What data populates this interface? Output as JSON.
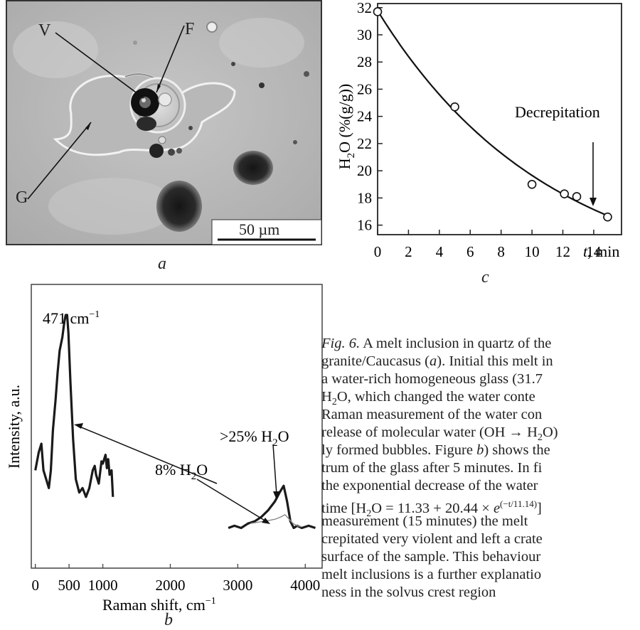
{
  "figure_a": {
    "panel_letter": "a",
    "labels": {
      "V": "V",
      "F": "F",
      "G": "G"
    },
    "scale_bar": "50 µm"
  },
  "chart_data": [
    {
      "type": "scatter",
      "panel_letter": "c",
      "ylabel": "H2O (%(g/g))",
      "ylabel_parts": {
        "main": "H",
        "sub": "2",
        "tail": "O (%(g/g))"
      },
      "xlabel": "t, min",
      "xlabel_parts": {
        "var": "t",
        "rest": ", min"
      },
      "xlim": [
        0,
        15.8
      ],
      "ylim": [
        15.3,
        32.3
      ],
      "xticks": [
        0,
        2,
        4,
        6,
        8,
        10,
        12,
        14
      ],
      "yticks": [
        16,
        18,
        20,
        22,
        24,
        26,
        28,
        30,
        32
      ],
      "points": {
        "x": [
          0,
          5,
          10,
          12.1,
          12.9,
          14.9
        ],
        "y": [
          31.7,
          24.7,
          19.0,
          18.3,
          18.1,
          16.6
        ]
      },
      "fit": {
        "a": 11.33,
        "b": 20.44,
        "tau": 11.14,
        "x_range": [
          0,
          14.9
        ]
      },
      "annotation": {
        "text": "Decrepitation",
        "x": 14.9,
        "y": 16.6
      },
      "grid": false,
      "marker": "open-circle",
      "line_color": "#111111"
    },
    {
      "type": "line",
      "panel_letter": "b",
      "xlabel": "Raman shift, cm−1",
      "xlabel_parts": {
        "main": "Raman shift, cm",
        "sup": "−1"
      },
      "ylabel": "Intensity, a.u.",
      "xlim": [
        -60,
        4250
      ],
      "ylim": [
        0,
        1
      ],
      "xticks": [
        0,
        500,
        1000,
        2000,
        3000,
        4000
      ],
      "xtick_labels": [
        "0",
        "500",
        "1000",
        "2000",
        "3000",
        "4000"
      ],
      "series": [
        {
          "style": "thick",
          "x": [
            0,
            50,
            90,
            120,
            160,
            200,
            230,
            260,
            300,
            330,
            360,
            400,
            430,
            450,
            471,
            490,
            520,
            560,
            600,
            650,
            700,
            750,
            800,
            850,
            880,
            900,
            940,
            980,
            1000,
            1040,
            1060,
            1080,
            1100,
            1130,
            1150
          ],
          "y": [
            0.3,
            0.38,
            0.42,
            0.3,
            0.26,
            0.22,
            0.3,
            0.48,
            0.62,
            0.74,
            0.84,
            0.9,
            0.97,
            1.0,
            1.0,
            0.92,
            0.7,
            0.44,
            0.26,
            0.2,
            0.22,
            0.18,
            0.22,
            0.3,
            0.32,
            0.28,
            0.24,
            0.34,
            0.33,
            0.37,
            0.31,
            0.35,
            0.28,
            0.3,
            0.18
          ]
        },
        {
          "style": "thick",
          "x": [
            2860,
            2950,
            3050,
            3150,
            3250,
            3350,
            3450,
            3550,
            3620,
            3680,
            3730,
            3780,
            3830,
            3880,
            3950,
            4050,
            4150
          ],
          "y": [
            0.04,
            0.05,
            0.04,
            0.06,
            0.07,
            0.09,
            0.12,
            0.16,
            0.2,
            0.23,
            0.16,
            0.07,
            0.04,
            0.05,
            0.04,
            0.05,
            0.04
          ]
        },
        {
          "style": "thin",
          "x": [
            3180,
            3280,
            3380,
            3480,
            3560,
            3640,
            3700,
            3760,
            3820,
            3880,
            3950
          ],
          "y": [
            0.06,
            0.065,
            0.07,
            0.075,
            0.08,
            0.09,
            0.1,
            0.08,
            0.06,
            0.05,
            0.045
          ]
        }
      ],
      "annotations": [
        {
          "text": "471 cm−1",
          "main": "471 cm",
          "sup": "−1"
        },
        {
          "text": ">25% H2O",
          "main": ">25% H",
          "sub": "2",
          "tail": "O"
        },
        {
          "text": "8% H2O",
          "main": "8% H",
          "sub": "2",
          "tail": "O"
        }
      ]
    }
  ],
  "caption": {
    "lines": [
      {
        "prefix": "Fig. 6.",
        "text": " A melt inclusion in quartz of the"
      },
      {
        "text": "granite/Caucasus ("
      },
      {
        "text": "a water-rich homogeneous glass (31.7"
      },
      {
        "text": "O, which changed the water conte"
      },
      {
        "text": "Raman measurement of the water con"
      },
      {
        "text": "release of molecular water (OH → H"
      },
      {
        "text": "ly formed bubbles. Figure "
      },
      {
        "text": "trum of the glass after 5 minutes. In fi"
      },
      {
        "text": "the exponential decrease of the water"
      },
      {
        "text": "time [H"
      },
      {
        "text": "measurement (15 minutes) the melt"
      },
      {
        "text": "crepitated very violent and left a crate"
      },
      {
        "text": "surface of the sample. This behaviour"
      },
      {
        "text": "melt inclusions is a further explanatio"
      },
      {
        "text": "ness in the solvus crest region"
      }
    ],
    "fragments": {
      "l2_a": "a",
      "l2_b": "). Initial this melt in",
      "l4_h": "H",
      "l4_sub": "2",
      "l6_sub": "2",
      "l6_tail": "O)",
      "l7_b": "b",
      "l7_tail": ") shows the",
      "l10_sub": "2",
      "l10_mid": "O = 11.33 + 20.44 × ",
      "l10_e": "e",
      "l10_sup": "(−t/11.14)",
      "l10_tail": "]"
    }
  }
}
